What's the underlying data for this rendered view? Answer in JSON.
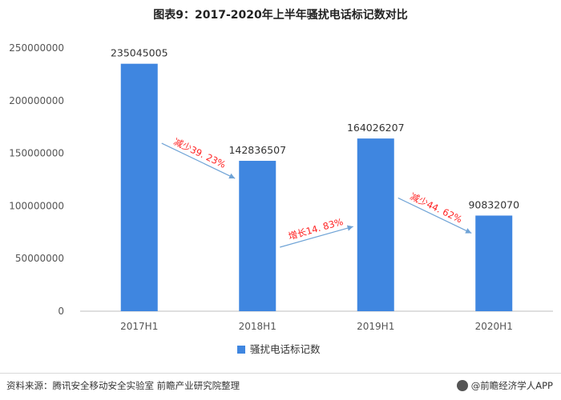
{
  "title": "图表9：2017-2020年上半年骚扰电话标记数对比",
  "chart_data": {
    "type": "bar",
    "categories": [
      "2017H1",
      "2018H1",
      "2019H1",
      "2020H1"
    ],
    "series": [
      {
        "name": "骚扰电话标记数",
        "values": [
          235045005,
          142836507,
          164026207,
          90832070
        ],
        "color": "#3f86e0"
      }
    ],
    "ylim": [
      0,
      250000000
    ],
    "yticks": [
      0,
      50000000,
      100000000,
      150000000,
      200000000,
      250000000
    ],
    "legend_position": "bottom",
    "grid": false,
    "annotations": [
      {
        "from": 0,
        "to": 1,
        "label": "减少39. 23%",
        "color": "#ff2020"
      },
      {
        "from": 1,
        "to": 2,
        "label": "增长14. 83%",
        "color": "#ff2020"
      },
      {
        "from": 2,
        "to": 3,
        "label": "减少44. 62%",
        "color": "#ff2020"
      }
    ],
    "arrow_color": "#6fa3d6"
  },
  "footer": {
    "source": "资料来源：腾讯安全移动安全实验室 前瞻产业研究院整理",
    "brand": "@前瞻经济学人APP"
  }
}
